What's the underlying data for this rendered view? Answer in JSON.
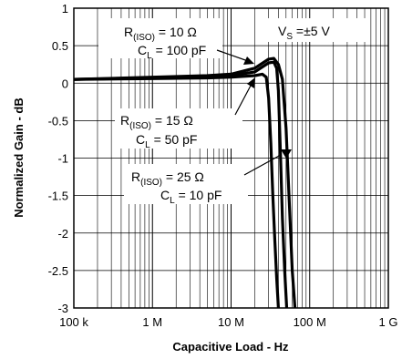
{
  "chart_data": {
    "type": "line",
    "xlabel": "Capacitive Load - Hz",
    "ylabel": "Normalized Gain - dB",
    "xscale": "log",
    "xlim": [
      100000,
      1000000000
    ],
    "ylim": [
      -3,
      1
    ],
    "grid": true,
    "x_ticks": [
      "100 k",
      "1 M",
      "10 M",
      "100 M",
      "1 G"
    ],
    "y_ticks": [
      "1",
      "0.5",
      "0",
      "-0.5",
      "-1",
      "-1.5",
      "-2",
      "-2.5",
      "-3"
    ],
    "supply_label": {
      "prefix": "V",
      "sub": "S",
      "value": " =±5 V"
    },
    "series": [
      {
        "r_prefix": "R",
        "r_sub": "(ISO)",
        "r_value": " = 10 Ω",
        "c_prefix": "C",
        "c_sub": "L",
        "c_value": " = 100 pF",
        "x": [
          100000,
          1000000,
          5000000,
          10000000,
          20000000,
          30000000,
          35000000,
          40000000,
          45000000,
          50000000,
          55000000,
          60000000,
          65000000
        ],
        "y": [
          0.05,
          0.08,
          0.1,
          0.12,
          0.2,
          0.32,
          0.33,
          0.25,
          0.05,
          -0.6,
          -1.6,
          -2.5,
          -3
        ]
      },
      {
        "r_prefix": "R",
        "r_sub": "(ISO)",
        "r_value": " = 15 Ω",
        "c_prefix": "C",
        "c_sub": "L",
        "c_value": " = 50 pF",
        "x": [
          100000,
          1000000,
          5000000,
          10000000,
          20000000,
          30000000,
          35000000,
          38000000,
          40000000,
          42000000,
          45000000,
          48000000,
          51000000
        ],
        "y": [
          0.05,
          0.07,
          0.09,
          0.1,
          0.15,
          0.27,
          0.28,
          0.2,
          -0.1,
          -0.8,
          -1.8,
          -2.5,
          -3
        ]
      },
      {
        "r_prefix": "R",
        "r_sub": "(ISO)",
        "r_value": " = 25 Ω",
        "c_prefix": "C",
        "c_sub": "L",
        "c_value": " = 10 pF",
        "x": [
          100000,
          1000000,
          5000000,
          10000000,
          20000000,
          25000000,
          28000000,
          30000000,
          32000000,
          34000000,
          36000000,
          38000000,
          40000000
        ],
        "y": [
          0.05,
          0.06,
          0.07,
          0.08,
          0.1,
          0.12,
          0.08,
          -0.2,
          -0.8,
          -1.5,
          -2.1,
          -2.6,
          -3
        ]
      }
    ]
  }
}
